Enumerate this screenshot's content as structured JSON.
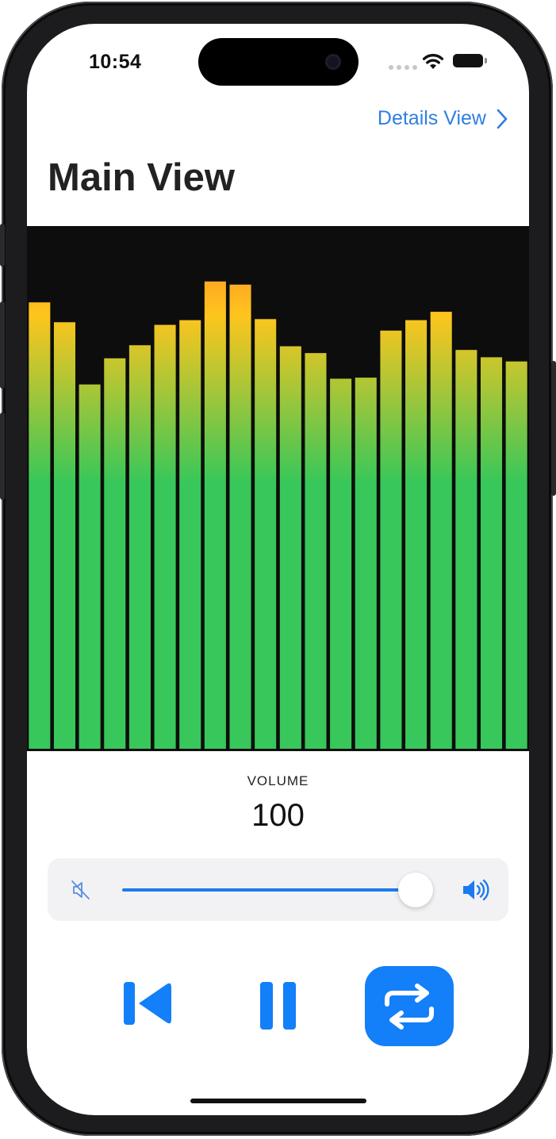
{
  "status_bar": {
    "time": "10:54",
    "icons": [
      "signal-dots",
      "wifi-icon",
      "battery-icon"
    ]
  },
  "navigation": {
    "link_label": "Details View",
    "link_icon": "chevron-right-icon",
    "title": "Main View"
  },
  "visualizer": {
    "type": "bar",
    "bar_levels": [
      0.854,
      0.816,
      0.697,
      0.747,
      0.772,
      0.811,
      0.82,
      0.894,
      0.888,
      0.822,
      0.77,
      0.757,
      0.708,
      0.71,
      0.8,
      0.82,
      0.836,
      0.763,
      0.749,
      0.741
    ],
    "colors": {
      "low": "#37c75a",
      "mid": "#fec51d",
      "high": "#fd7d2c",
      "background": "#0d0d0d"
    }
  },
  "volume": {
    "caption": "VOLUME",
    "value": "100",
    "level": 1.0,
    "min_icon": "speaker-mute-icon",
    "max_icon": "speaker-wave-icon"
  },
  "controls": [
    {
      "name": "previous",
      "icon": "backward-end-icon"
    },
    {
      "name": "pause",
      "icon": "pause-icon"
    },
    {
      "name": "repeat",
      "icon": "repeat-icon",
      "active": true
    }
  ],
  "accent_color": "#137ff8"
}
